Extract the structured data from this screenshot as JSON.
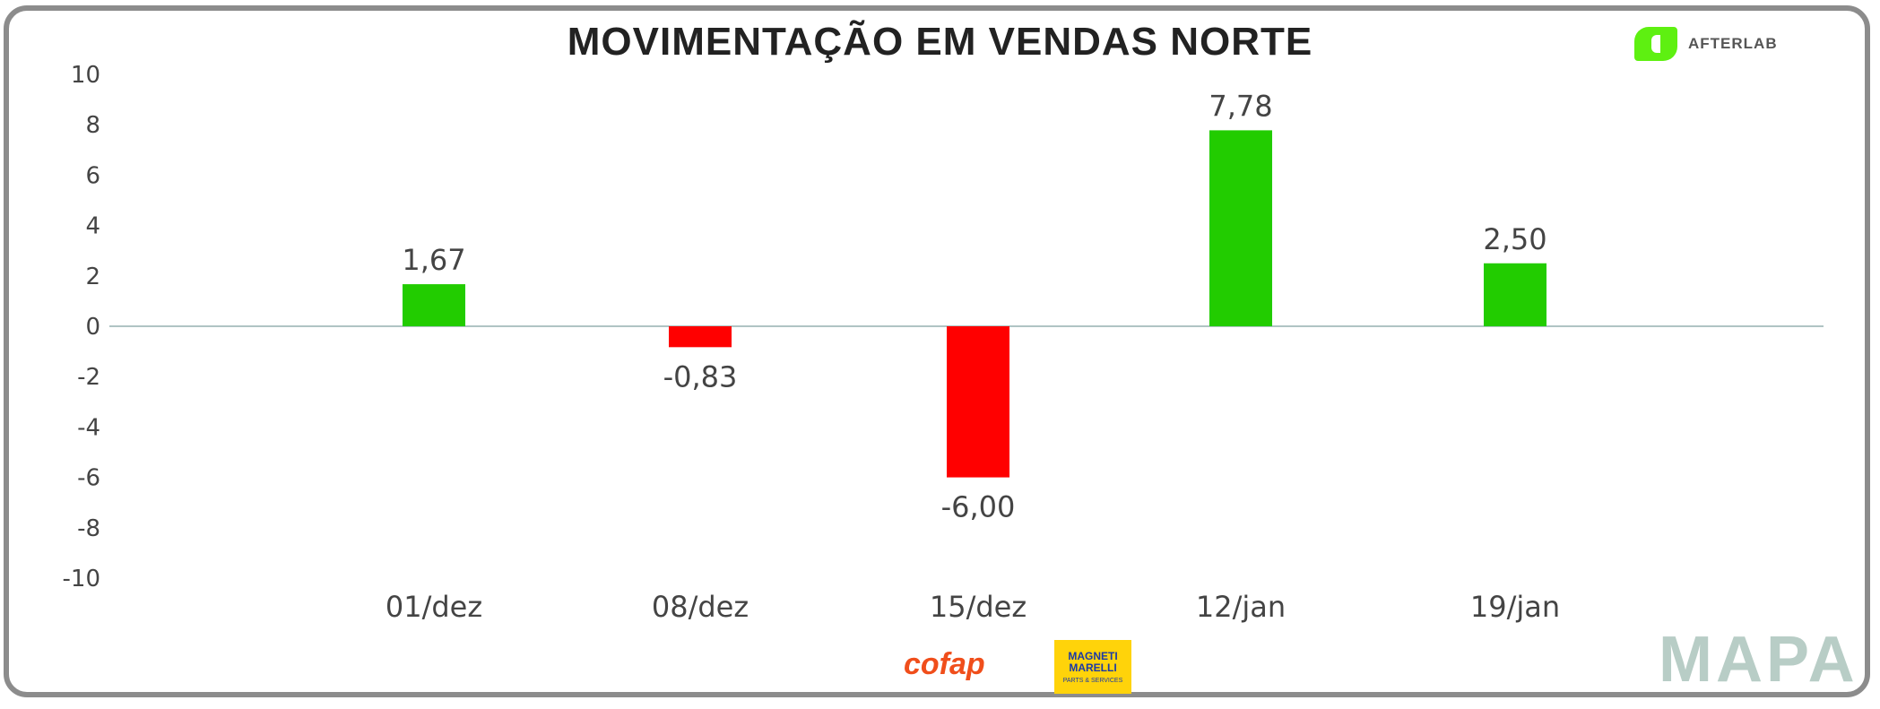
{
  "chart_data": {
    "type": "bar",
    "title": "MOVIMENTAÇÃO EM VENDAS NORTE",
    "categories": [
      "01/dez",
      "08/dez",
      "15/dez",
      "12/jan",
      "19/jan"
    ],
    "values": [
      1.67,
      -0.83,
      -6.0,
      7.78,
      2.5
    ],
    "data_labels": [
      "1,67",
      "-0,83",
      "-6,00",
      "7,78",
      "2,50"
    ],
    "xlabel": "",
    "ylabel": "",
    "ylim": [
      -10,
      10
    ],
    "yticks": [
      10,
      8,
      6,
      4,
      2,
      0,
      -2,
      -4,
      -6,
      -8,
      -10
    ],
    "grid": false,
    "legend": "none",
    "colors": {
      "positive": "#22cc00",
      "negative": "#ff0000",
      "axis": "#b0c4c4",
      "text": "#444444"
    }
  },
  "logos": {
    "afterlab": "AFTERLAB",
    "cofap": "cofap",
    "magneti": "MAGNETI MARELLI",
    "magneti_sub": "PARTS & SERVICES",
    "mapa": "MAPA",
    "afterlab_color": "#5ef011"
  }
}
